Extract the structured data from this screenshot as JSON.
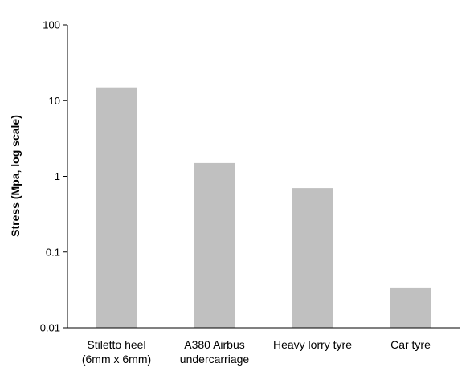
{
  "chart_data": {
    "type": "bar",
    "title": "",
    "xlabel": "",
    "ylabel": "Stress (Mpa, log scale)",
    "yscale": "log",
    "ylim": [
      0.01,
      100
    ],
    "grid": false,
    "legend": "none",
    "bar_color": "#c0c0c0",
    "axis_color": "#000000",
    "y_ticks": [
      {
        "value": 100,
        "label": "100"
      },
      {
        "value": 10,
        "label": "10"
      },
      {
        "value": 1,
        "label": "1"
      },
      {
        "value": 0.1,
        "label": "0.1"
      },
      {
        "value": 0.01,
        "label": "0.01"
      }
    ],
    "categories": [
      [
        "Stiletto heel",
        "(6mm x 6mm)"
      ],
      [
        "A380 Airbus",
        "undercarriage"
      ],
      [
        "Heavy lorry tyre"
      ],
      [
        "Car tyre"
      ]
    ],
    "values": [
      15,
      1.5,
      0.7,
      0.034
    ]
  }
}
